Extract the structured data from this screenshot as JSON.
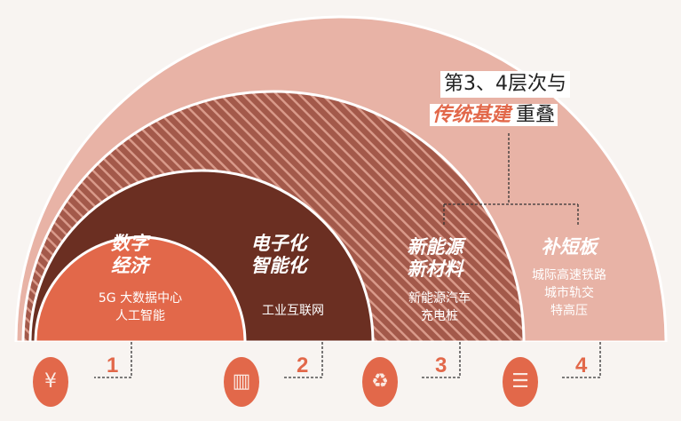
{
  "colors": {
    "layer1": "#e2684a",
    "layer2": "#6b2f22",
    "layer3": "#a3594a",
    "layer4": "#e8b3a6",
    "accent": "#e2684a",
    "background": "#f8f4f1"
  },
  "callout": {
    "line1": "第3、4层次与",
    "highlight": "传统基建",
    "suffix": "重叠"
  },
  "layers": [
    {
      "title": [
        "数字",
        "经济"
      ],
      "items": [
        "5G  大数据中心",
        "人工智能"
      ],
      "number": "1",
      "icon": "chip-yuan-icon"
    },
    {
      "title": [
        "电子化",
        "智能化"
      ],
      "items": [
        "工业互联网"
      ],
      "number": "2",
      "icon": "smart-building-icon"
    },
    {
      "title": [
        "新能源",
        "新材料"
      ],
      "items": [
        "新能源汽车",
        "充电桩"
      ],
      "number": "3",
      "icon": "recycle-energy-icon"
    },
    {
      "title": [
        "补短板"
      ],
      "items": [
        "城际高速铁路",
        "城市轨交",
        "特高压"
      ],
      "number": "4",
      "icon": "railway-track-icon"
    }
  ]
}
